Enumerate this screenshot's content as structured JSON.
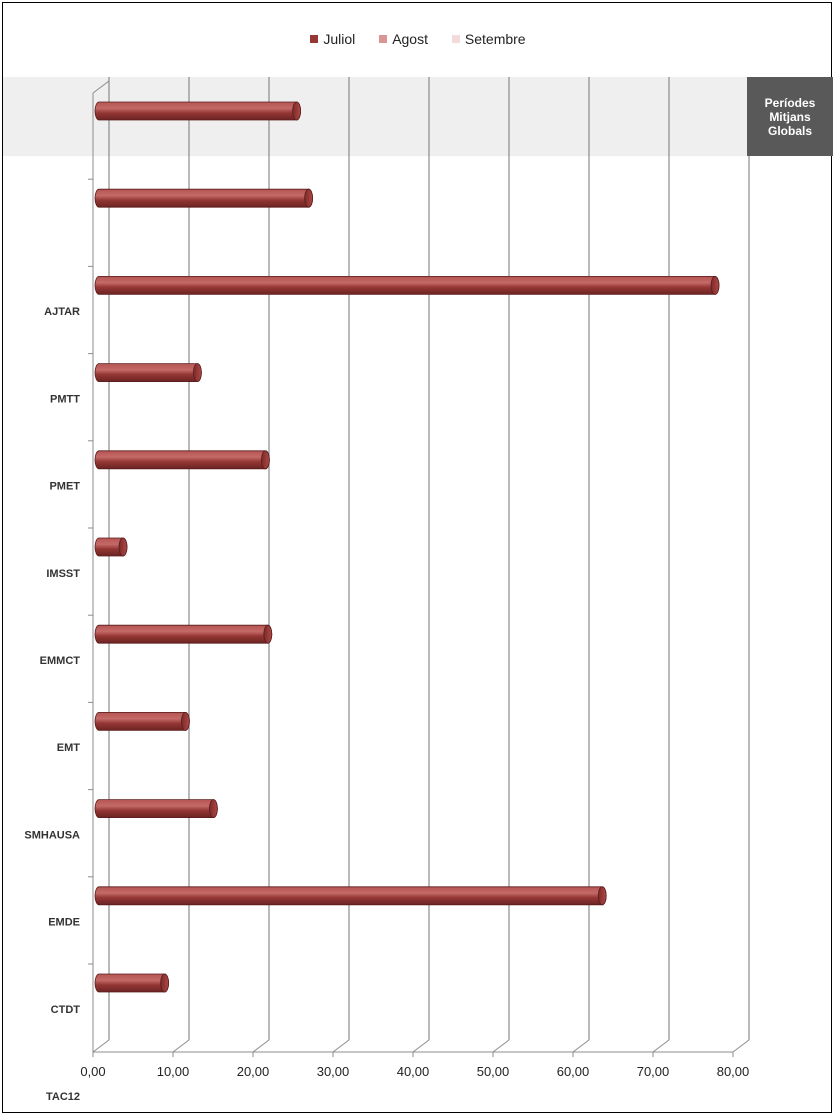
{
  "legend": [
    {
      "label": "Juliol",
      "color": "#953735"
    },
    {
      "label": "Agost",
      "color": "#D99694"
    },
    {
      "label": "Setembre",
      "color": "#F2DCDB"
    }
  ],
  "side_label": "Períodes\nMitjans\nGlobals",
  "chart_data": {
    "type": "bar",
    "orientation": "horizontal",
    "categories": [
      "",
      "AJTAR",
      "PMTT",
      "PMET",
      "IMSST",
      "EMMCT",
      "EMT",
      "SMHAUSA",
      "EMDE",
      "CTDT",
      "TAC12"
    ],
    "series": [
      {
        "name": "Juliol",
        "values": [
          24.7,
          26.2,
          77.0,
          12.3,
          20.8,
          3.0,
          21.1,
          10.8,
          14.3,
          62.9,
          8.2
        ]
      },
      {
        "name": "Agost",
        "values": [
          0,
          0,
          0,
          0,
          0,
          0,
          0,
          0,
          0,
          0,
          0
        ]
      },
      {
        "name": "Setembre",
        "values": [
          0,
          0,
          0,
          0,
          0,
          0,
          0,
          0,
          0,
          0,
          0
        ]
      }
    ],
    "xlim": [
      0,
      80
    ],
    "x_ticks": [
      "0,00",
      "10,00",
      "20,00",
      "30,00",
      "40,00",
      "50,00",
      "60,00",
      "70,00",
      "80,00"
    ],
    "grid": true,
    "legend_position": "top",
    "highlighted_category": ""
  }
}
